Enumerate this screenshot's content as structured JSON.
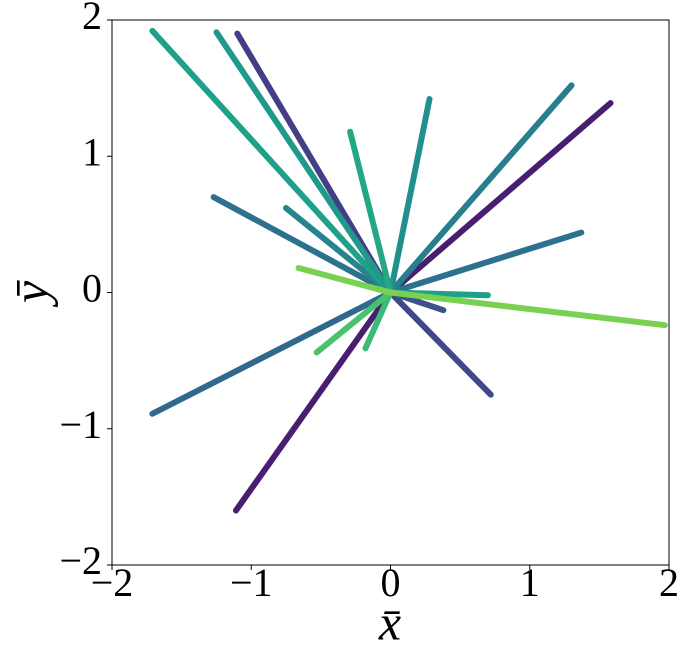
{
  "chart_data": {
    "type": "line",
    "x_label": "x̄",
    "y_label": "ȳ",
    "xlim": [
      -2,
      2
    ],
    "ylim": [
      -2,
      2
    ],
    "xticks": [
      {
        "value": -2,
        "label": "−2"
      },
      {
        "value": -1,
        "label": "−1"
      },
      0,
      1,
      2
    ],
    "yticks": [
      {
        "value": -2,
        "label": "−2"
      },
      {
        "value": -1,
        "label": "−1"
      },
      0,
      1,
      2
    ],
    "grid": false,
    "series": [
      {
        "color": "#481f70",
        "x": [
          0,
          1.58
        ],
        "values": [
          0,
          1.39
        ]
      },
      {
        "color": "#481f70",
        "x": [
          0,
          -1.11
        ],
        "values": [
          0,
          -1.6
        ]
      },
      {
        "color": "#433e85",
        "x": [
          0,
          -1.1
        ],
        "values": [
          0,
          1.9
        ]
      },
      {
        "color": "#3e4989",
        "x": [
          0,
          0.72
        ],
        "values": [
          0,
          -0.75
        ]
      },
      {
        "color": "#3b528b",
        "x": [
          0,
          0.38
        ],
        "values": [
          0,
          -0.13
        ]
      },
      {
        "color": "#31688e",
        "x": [
          0,
          -1.71
        ],
        "values": [
          0,
          -0.89
        ]
      },
      {
        "color": "#2c718e",
        "x": [
          0,
          -1.27
        ],
        "values": [
          0,
          0.7
        ]
      },
      {
        "color": "#2c718e",
        "x": [
          0,
          1.37
        ],
        "values": [
          0,
          0.44
        ]
      },
      {
        "color": "#277f8e",
        "x": [
          0,
          1.3
        ],
        "values": [
          0,
          1.52
        ]
      },
      {
        "color": "#25848e",
        "x": [
          0,
          -0.75
        ],
        "values": [
          0,
          0.62
        ]
      },
      {
        "color": "#21908d",
        "x": [
          0,
          0.28
        ],
        "values": [
          0,
          1.42
        ]
      },
      {
        "color": "#1fa088",
        "x": [
          0,
          -1.71
        ],
        "values": [
          0,
          1.92
        ]
      },
      {
        "color": "#1f9a8a",
        "x": [
          0,
          -1.25
        ],
        "values": [
          0,
          1.91
        ]
      },
      {
        "color": "#22a884",
        "x": [
          0,
          -0.29
        ],
        "values": [
          0,
          1.18
        ]
      },
      {
        "color": "#1fa187",
        "x": [
          0,
          0.7
        ],
        "values": [
          0,
          -0.02
        ]
      },
      {
        "color": "#3bbb75",
        "x": [
          0,
          -0.18
        ],
        "values": [
          0,
          -0.41
        ]
      },
      {
        "color": "#4ac16d",
        "x": [
          0,
          -0.53
        ],
        "values": [
          0,
          -0.44
        ]
      },
      {
        "color": "#7ad151",
        "x": [
          0,
          1.97
        ],
        "values": [
          0,
          -0.24
        ]
      },
      {
        "color": "#7ad151",
        "x": [
          0,
          -0.66
        ],
        "values": [
          0,
          0.18
        ]
      }
    ]
  }
}
